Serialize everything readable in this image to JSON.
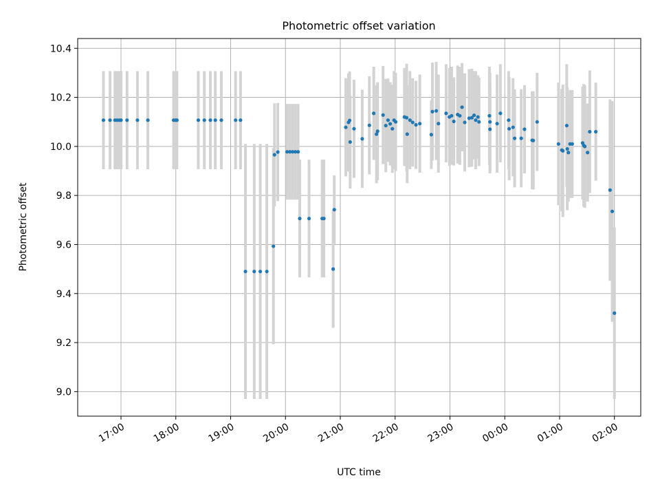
{
  "chart_data": {
    "type": "scatter",
    "title": "Photometric offset variation",
    "xlabel": "UTC time",
    "ylabel": "Photometric offset",
    "x_ticks": [
      "17:00",
      "18:00",
      "19:00",
      "20:00",
      "21:00",
      "22:00",
      "23:00",
      "00:00",
      "01:00",
      "02:00"
    ],
    "x_tick_hours": [
      17,
      18,
      19,
      20,
      21,
      22,
      23,
      24,
      25,
      26
    ],
    "xlim_hours": [
      16.21,
      26.48
    ],
    "ylim": [
      8.9,
      10.44
    ],
    "y_ticks": [
      "9.0",
      "9.2",
      "9.4",
      "9.6",
      "9.8",
      "10.0",
      "10.2",
      "10.4"
    ],
    "y_tick_values": [
      9.0,
      9.2,
      9.4,
      9.6,
      9.8,
      10.0,
      10.2,
      10.4
    ],
    "grid": true,
    "marker_color": "#1f77b4",
    "errorbar_color": "#d3d3d3",
    "series": [
      {
        "points": [
          {
            "t": 16.68,
            "y": 10.107,
            "e": 0.2
          },
          {
            "t": 16.8,
            "y": 10.107,
            "e": 0.2
          },
          {
            "t": 16.89,
            "y": 10.107,
            "e": 0.2
          },
          {
            "t": 16.93,
            "y": 10.107,
            "e": 0.2
          },
          {
            "t": 16.97,
            "y": 10.107,
            "e": 0.2
          },
          {
            "t": 17.0,
            "y": 10.107,
            "e": 0.2
          },
          {
            "t": 17.11,
            "y": 10.107,
            "e": 0.2
          },
          {
            "t": 17.3,
            "y": 10.107,
            "e": 0.2
          },
          {
            "t": 17.49,
            "y": 10.107,
            "e": 0.2
          },
          {
            "t": 17.96,
            "y": 10.107,
            "e": 0.2
          },
          {
            "t": 18.0,
            "y": 10.107,
            "e": 0.2
          },
          {
            "t": 18.02,
            "y": 10.107,
            "e": 0.2
          },
          {
            "t": 18.41,
            "y": 10.107,
            "e": 0.2
          },
          {
            "t": 18.52,
            "y": 10.107,
            "e": 0.2
          },
          {
            "t": 18.63,
            "y": 10.107,
            "e": 0.2
          },
          {
            "t": 18.72,
            "y": 10.107,
            "e": 0.2
          },
          {
            "t": 18.83,
            "y": 10.107,
            "e": 0.2
          },
          {
            "t": 19.09,
            "y": 10.107,
            "e": 0.2
          },
          {
            "t": 19.18,
            "y": 10.107,
            "e": 0.2
          },
          {
            "t": 19.27,
            "y": 9.49,
            "e": 0.52
          },
          {
            "t": 19.43,
            "y": 9.49,
            "e": 0.52
          },
          {
            "t": 19.54,
            "y": 9.49,
            "e": 0.52
          },
          {
            "t": 19.66,
            "y": 9.49,
            "e": 0.52
          },
          {
            "t": 19.78,
            "y": 9.593,
            "e": 0.4
          },
          {
            "t": 19.8,
            "y": 9.966,
            "e": 0.21
          },
          {
            "t": 19.86,
            "y": 9.977,
            "e": 0.2
          },
          {
            "t": 20.03,
            "y": 9.978,
            "e": 0.195
          },
          {
            "t": 20.08,
            "y": 9.978,
            "e": 0.195
          },
          {
            "t": 20.13,
            "y": 9.978,
            "e": 0.195
          },
          {
            "t": 20.18,
            "y": 9.978,
            "e": 0.195
          },
          {
            "t": 20.23,
            "y": 9.978,
            "e": 0.195
          },
          {
            "t": 20.26,
            "y": 9.706,
            "e": 0.24
          },
          {
            "t": 20.43,
            "y": 9.706,
            "e": 0.24
          },
          {
            "t": 20.67,
            "y": 9.706,
            "e": 0.24
          },
          {
            "t": 20.7,
            "y": 9.706,
            "e": 0.24
          },
          {
            "t": 20.87,
            "y": 9.5,
            "e": 0.24
          },
          {
            "t": 20.89,
            "y": 9.742,
            "e": 0.14
          },
          {
            "t": 21.1,
            "y": 10.078,
            "e": 0.2
          },
          {
            "t": 21.15,
            "y": 10.098,
            "e": 0.2
          },
          {
            "t": 21.17,
            "y": 10.106,
            "e": 0.2
          },
          {
            "t": 21.18,
            "y": 10.018,
            "e": 0.19
          },
          {
            "t": 21.25,
            "y": 10.072,
            "e": 0.2
          },
          {
            "t": 21.4,
            "y": 10.031,
            "e": 0.2
          },
          {
            "t": 21.53,
            "y": 10.086,
            "e": 0.2
          },
          {
            "t": 21.61,
            "y": 10.135,
            "e": 0.19
          },
          {
            "t": 21.66,
            "y": 10.05,
            "e": 0.2
          },
          {
            "t": 21.68,
            "y": 10.062,
            "e": 0.2
          },
          {
            "t": 21.78,
            "y": 10.128,
            "e": 0.2
          },
          {
            "t": 21.83,
            "y": 10.085,
            "e": 0.19
          },
          {
            "t": 21.87,
            "y": 10.107,
            "e": 0.17
          },
          {
            "t": 21.91,
            "y": 10.092,
            "e": 0.17
          },
          {
            "t": 21.95,
            "y": 10.072,
            "e": 0.18
          },
          {
            "t": 21.98,
            "y": 10.107,
            "e": 0.2
          },
          {
            "t": 22.01,
            "y": 10.1,
            "e": 0.2
          },
          {
            "t": 22.17,
            "y": 10.12,
            "e": 0.2
          },
          {
            "t": 22.21,
            "y": 10.117,
            "e": 0.22
          },
          {
            "t": 22.22,
            "y": 10.05,
            "e": 0.2
          },
          {
            "t": 22.27,
            "y": 10.107,
            "e": 0.2
          },
          {
            "t": 22.32,
            "y": 10.098,
            "e": 0.18
          },
          {
            "t": 22.38,
            "y": 10.088,
            "e": 0.18
          },
          {
            "t": 22.45,
            "y": 10.093,
            "e": 0.2
          },
          {
            "t": 22.66,
            "y": 10.048,
            "e": 0.14
          },
          {
            "t": 22.68,
            "y": 10.142,
            "e": 0.2
          },
          {
            "t": 22.75,
            "y": 10.145,
            "e": 0.2
          },
          {
            "t": 22.79,
            "y": 10.093,
            "e": 0.2
          },
          {
            "t": 22.93,
            "y": 10.135,
            "e": 0.2
          },
          {
            "t": 22.99,
            "y": 10.12,
            "e": 0.2
          },
          {
            "t": 23.03,
            "y": 10.125,
            "e": 0.2
          },
          {
            "t": 23.07,
            "y": 10.102,
            "e": 0.18
          },
          {
            "t": 23.14,
            "y": 10.13,
            "e": 0.2
          },
          {
            "t": 23.18,
            "y": 10.125,
            "e": 0.2
          },
          {
            "t": 23.22,
            "y": 10.16,
            "e": 0.18
          },
          {
            "t": 23.27,
            "y": 10.098,
            "e": 0.2
          },
          {
            "t": 23.35,
            "y": 10.115,
            "e": 0.2
          },
          {
            "t": 23.4,
            "y": 10.117,
            "e": 0.2
          },
          {
            "t": 23.44,
            "y": 10.127,
            "e": 0.18
          },
          {
            "t": 23.47,
            "y": 10.107,
            "e": 0.2
          },
          {
            "t": 23.51,
            "y": 10.12,
            "e": 0.17
          },
          {
            "t": 23.53,
            "y": 10.1,
            "e": 0.18
          },
          {
            "t": 23.72,
            "y": 10.125,
            "e": 0.2
          },
          {
            "t": 23.73,
            "y": 10.1,
            "e": 0.2
          },
          {
            "t": 23.73,
            "y": 10.07,
            "e": 0.18
          },
          {
            "t": 23.86,
            "y": 10.093,
            "e": 0.2
          },
          {
            "t": 23.92,
            "y": 10.135,
            "e": 0.2
          },
          {
            "t": 24.07,
            "y": 10.107,
            "e": 0.2
          },
          {
            "t": 24.08,
            "y": 10.072,
            "e": 0.21
          },
          {
            "t": 24.15,
            "y": 10.078,
            "e": 0.2
          },
          {
            "t": 24.18,
            "y": 10.033,
            "e": 0.2
          },
          {
            "t": 24.3,
            "y": 10.033,
            "e": 0.2
          },
          {
            "t": 24.36,
            "y": 10.07,
            "e": 0.18
          },
          {
            "t": 24.5,
            "y": 10.025,
            "e": 0.2
          },
          {
            "t": 24.52,
            "y": 10.024,
            "e": 0.2
          },
          {
            "t": 24.59,
            "y": 10.1,
            "e": 0.2
          },
          {
            "t": 24.98,
            "y": 10.01,
            "e": 0.25
          },
          {
            "t": 25.04,
            "y": 9.985,
            "e": 0.25
          },
          {
            "t": 25.06,
            "y": 9.982,
            "e": 0.27
          },
          {
            "t": 25.13,
            "y": 10.085,
            "e": 0.25
          },
          {
            "t": 25.14,
            "y": 9.99,
            "e": 0.25
          },
          {
            "t": 25.16,
            "y": 9.975,
            "e": 0.2
          },
          {
            "t": 25.19,
            "y": 10.01,
            "e": 0.22
          },
          {
            "t": 25.23,
            "y": 10.01,
            "e": 0.22
          },
          {
            "t": 25.42,
            "y": 10.014,
            "e": 0.23
          },
          {
            "t": 25.44,
            "y": 10.004,
            "e": 0.25
          },
          {
            "t": 25.46,
            "y": 10.0,
            "e": 0.25
          },
          {
            "t": 25.51,
            "y": 9.975,
            "e": 0.2
          },
          {
            "t": 25.55,
            "y": 10.06,
            "e": 0.25
          },
          {
            "t": 25.66,
            "y": 10.06,
            "e": 0.2
          },
          {
            "t": 25.92,
            "y": 9.822,
            "e": 0.37
          },
          {
            "t": 25.96,
            "y": 9.735,
            "e": 0.45
          },
          {
            "t": 26.0,
            "y": 9.32,
            "e": 0.35
          }
        ]
      }
    ]
  }
}
